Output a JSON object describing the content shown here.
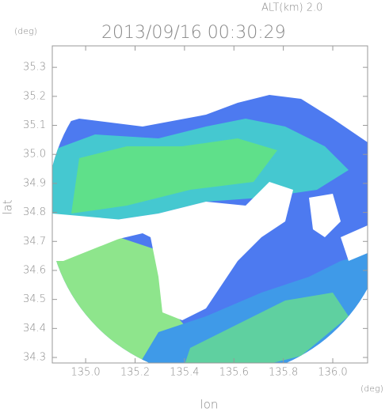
{
  "chart_data": {
    "type": "radar",
    "title": "2013/09/16 00:30:29",
    "annotation": "ALT(km) 2.0",
    "x_label": "lon",
    "y_label": "lat",
    "x_unit": "(deg)",
    "y_unit": "(deg)",
    "xlim": [
      134.865,
      136.141
    ],
    "ylim": [
      34.281,
      35.374
    ],
    "xticks": [
      {
        "value": 135,
        "label": "135.0"
      },
      135.2,
      135.4,
      135.6,
      135.8,
      {
        "value": 136,
        "label": "136.0"
      }
    ],
    "yticks": [
      34.3,
      34.4,
      34.5,
      34.6,
      34.7,
      34.8,
      34.9,
      {
        "value": 35,
        "label": "35.0"
      },
      35.1,
      35.2,
      35.3
    ]
  }
}
